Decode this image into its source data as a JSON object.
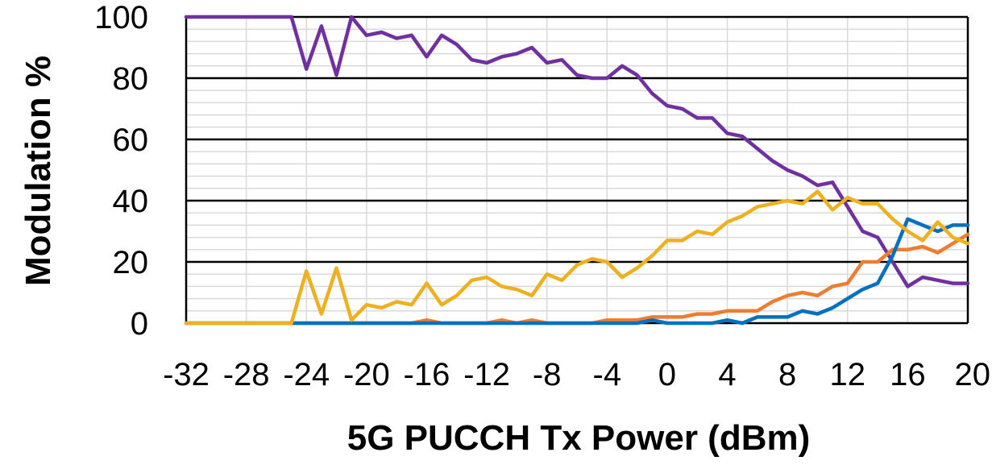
{
  "chart_data": {
    "type": "line",
    "title": "",
    "xlabel": "5G PUCCH Tx Power (dBm)",
    "ylabel": "Modulation %",
    "xlim": [
      -32,
      20
    ],
    "ylim": [
      0,
      100
    ],
    "xticks": [
      -32,
      -28,
      -24,
      -20,
      -16,
      -12,
      -8,
      -4,
      0,
      4,
      8,
      12,
      16,
      20
    ],
    "yticks": [
      0,
      20,
      40,
      60,
      80,
      100
    ],
    "grid": true,
    "legend": "none",
    "x": [
      -32,
      -31,
      -30,
      -29,
      -28,
      -27,
      -26,
      -25,
      -24,
      -23,
      -22,
      -21,
      -20,
      -19,
      -18,
      -17,
      -16,
      -15,
      -14,
      -13,
      -12,
      -11,
      -10,
      -9,
      -8,
      -7,
      -6,
      -5,
      -4,
      -3,
      -2,
      -1,
      0,
      1,
      2,
      3,
      4,
      5,
      6,
      7,
      8,
      9,
      10,
      11,
      12,
      13,
      14,
      15,
      16,
      17,
      18,
      19,
      20
    ],
    "series": [
      {
        "color": "#7030A0",
        "values": [
          100,
          100,
          100,
          100,
          100,
          100,
          100,
          100,
          83,
          97,
          81,
          100,
          94,
          95,
          93,
          94,
          87,
          94,
          91,
          86,
          85,
          87,
          88,
          90,
          85,
          86,
          81,
          80,
          80,
          84,
          81,
          75,
          71,
          70,
          67,
          67,
          62,
          61,
          57,
          53,
          50,
          48,
          45,
          46,
          38,
          30,
          28,
          20,
          12,
          15,
          14,
          13,
          13
        ]
      },
      {
        "color": "#ED7D31",
        "values": [
          0,
          0,
          0,
          0,
          0,
          0,
          0,
          0,
          0,
          0,
          0,
          0,
          0,
          0,
          0,
          0,
          1,
          0,
          0,
          0,
          0,
          1,
          0,
          1,
          0,
          0,
          0,
          0,
          1,
          1,
          1,
          2,
          2,
          2,
          3,
          3,
          4,
          4,
          4,
          7,
          9,
          10,
          9,
          12,
          13,
          20,
          20,
          24,
          24,
          25,
          23,
          26,
          29
        ]
      },
      {
        "color": "#0070C0",
        "values": [
          0,
          0,
          0,
          0,
          0,
          0,
          0,
          0,
          0,
          0,
          0,
          0,
          0,
          0,
          0,
          0,
          0,
          0,
          0,
          0,
          0,
          0,
          0,
          0,
          0,
          0,
          0,
          0,
          0,
          0,
          0,
          1,
          0,
          0,
          0,
          0,
          1,
          0,
          2,
          2,
          2,
          4,
          3,
          5,
          8,
          11,
          13,
          22,
          34,
          32,
          30,
          32,
          32
        ]
      },
      {
        "color": "#EDB120",
        "values": [
          0,
          0,
          0,
          0,
          0,
          0,
          0,
          0,
          17,
          3,
          18,
          1,
          6,
          5,
          7,
          6,
          13,
          6,
          9,
          14,
          15,
          12,
          11,
          9,
          16,
          14,
          19,
          21,
          20,
          15,
          18,
          22,
          27,
          27,
          30,
          29,
          33,
          35,
          38,
          39,
          40,
          39,
          43,
          37,
          41,
          39,
          39,
          34,
          30,
          27,
          33,
          28,
          26
        ]
      }
    ]
  }
}
